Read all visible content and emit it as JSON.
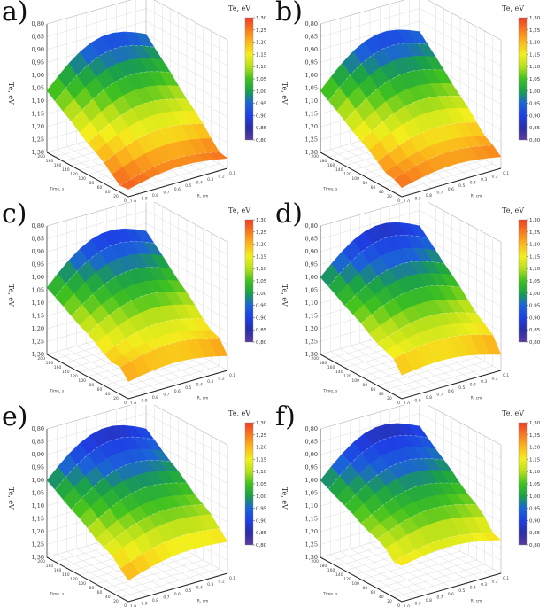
{
  "chart_data": [
    {
      "panel": "a)",
      "type": "surface3d",
      "title": "",
      "zlabel": "Te, eV",
      "xlabel": "Time, s",
      "ylabel": "R, cm",
      "colorbar_title": "Te, eV",
      "zlim": [
        0.8,
        1.3
      ],
      "z_ticks": [
        "0,80",
        "0,85",
        "0,90",
        "0,95",
        "1,00",
        "1,05",
        "1,10",
        "1,15",
        "1,20",
        "1,25",
        "1,30"
      ],
      "x_ticks": [
        "200",
        "180",
        "160",
        "140",
        "120",
        "100",
        "80",
        "60",
        "40",
        "20",
        "0"
      ],
      "y_ticks": [
        "1.0",
        "0.9",
        "0.8",
        "0.7",
        "0.6",
        "0.5",
        "0.4",
        "0.3",
        "0.2",
        "0.1"
      ],
      "colorbar_ticks": [
        "1,30",
        "1,25",
        "1,20",
        "1,15",
        "1,10",
        "1,05",
        "1,00",
        "0,95",
        "0,90",
        "0,85",
        "0,80"
      ],
      "corner_values": {
        "t200_r1.0": 1.06,
        "t0_r1.0": 1.29,
        "t0_r0.1": 1.28,
        "t200_r0.1": 0.95
      },
      "min": 0.91,
      "max": 1.3
    },
    {
      "panel": "b)",
      "type": "surface3d",
      "title": "",
      "zlabel": "Te, eV",
      "xlabel": "Time, s",
      "ylabel": "R, cm",
      "colorbar_title": "Te, eV",
      "zlim": [
        0.8,
        1.3
      ],
      "z_ticks": [
        "0,80",
        "0,85",
        "0,90",
        "0,95",
        "1,00",
        "1,05",
        "1,10",
        "1,15",
        "1,20",
        "1,25",
        "1,30"
      ],
      "x_ticks": [
        "200",
        "180",
        "160",
        "140",
        "120",
        "100",
        "80",
        "60",
        "40",
        "20",
        "0"
      ],
      "y_ticks": [
        "1.0",
        "0.9",
        "0.8",
        "0.7",
        "0.6",
        "0.5",
        "0.4",
        "0.3",
        "0.2",
        "0.1"
      ],
      "colorbar_ticks": [
        "1,30",
        "1,25",
        "1,20",
        "1,15",
        "1,10",
        "1,05",
        "1,00",
        "0,95",
        "0,90",
        "0,85",
        "0,80"
      ],
      "corner_values": {
        "t200_r1.0": 1.06,
        "t0_r1.0": 1.28,
        "t0_r0.1": 1.27,
        "t200_r0.1": 0.94
      },
      "min": 0.9,
      "max": 1.28
    },
    {
      "panel": "c)",
      "type": "surface3d",
      "title": "",
      "zlabel": "Te, eV",
      "xlabel": "Time, s",
      "ylabel": "R, cm",
      "colorbar_title": "Te, eV",
      "zlim": [
        0.8,
        1.3
      ],
      "z_ticks": [
        "0,80",
        "0,85",
        "0,90",
        "0,95",
        "1,00",
        "1,05",
        "1,10",
        "1,15",
        "1,20",
        "1,25",
        "1,30"
      ],
      "x_ticks": [
        "200",
        "180",
        "160",
        "140",
        "120",
        "100",
        "80",
        "60",
        "40",
        "20",
        "0"
      ],
      "y_ticks": [
        "1.0",
        "0.9",
        "0.8",
        "0.7",
        "0.6",
        "0.5",
        "0.4",
        "0.3",
        "0.2",
        "0.1"
      ],
      "colorbar_ticks": [
        "1,30",
        "1,25",
        "1,20",
        "1,15",
        "1,10",
        "1,05",
        "1,00",
        "0,95",
        "0,90",
        "0,85",
        "0,80"
      ],
      "corner_values": {
        "t200_r1.0": 1.04,
        "t0_r1.0": 1.23,
        "t0_r0.1": 1.24,
        "t200_r0.1": 0.93
      },
      "min": 0.89,
      "max": 1.24
    },
    {
      "panel": "d)",
      "type": "surface3d",
      "title": "",
      "zlabel": "Te, eV",
      "xlabel": "Time, s",
      "ylabel": "R, cm",
      "colorbar_title": "Te, eV",
      "zlim": [
        0.8,
        1.3
      ],
      "z_ticks": [
        "0,80",
        "0,85",
        "0,90",
        "0,95",
        "1,00",
        "1,05",
        "1,10",
        "1,15",
        "1,20",
        "1,25",
        "1,30"
      ],
      "x_ticks": [
        "200",
        "180",
        "160",
        "140",
        "120",
        "100",
        "80",
        "60",
        "40",
        "20",
        "0"
      ],
      "y_ticks": [
        "1.0",
        "0.9",
        "0.8",
        "0.7",
        "0.6",
        "0.5",
        "0.4",
        "0.3",
        "0.2",
        "0.1"
      ],
      "colorbar_ticks": [
        "1,30",
        "1,25",
        "1,20",
        "1,15",
        "1,10",
        "1,05",
        "1,00",
        "0,95",
        "0,90",
        "0,85",
        "0,80"
      ],
      "corner_values": {
        "t200_r1.0": 1.0,
        "t0_r1.0": 1.19,
        "t0_r0.1": 1.22,
        "t200_r0.1": 0.91
      },
      "min": 0.86,
      "max": 1.22
    },
    {
      "panel": "e)",
      "type": "surface3d",
      "title": "",
      "zlabel": "Te, eV",
      "xlabel": "Time, s",
      "ylabel": "R, cm",
      "colorbar_title": "Te, eV",
      "zlim": [
        0.8,
        1.3
      ],
      "z_ticks": [
        "0,80",
        "0,85",
        "0,90",
        "0,95",
        "1,00",
        "1,05",
        "1,10",
        "1,15",
        "1,20",
        "1,25",
        "1,30"
      ],
      "x_ticks": [
        "200",
        "180",
        "160",
        "140",
        "120",
        "100",
        "80",
        "60",
        "40",
        "20",
        "0"
      ],
      "y_ticks": [
        "1.0",
        "0.9",
        "0.8",
        "0.7",
        "0.6",
        "0.5",
        "0.4",
        "0.3",
        "0.2",
        "0.1"
      ],
      "colorbar_ticks": [
        "1,30",
        "1,25",
        "1,20",
        "1,15",
        "1,10",
        "1,05",
        "1,00",
        "0,95",
        "0,90",
        "0,85",
        "0,80"
      ],
      "corner_values": {
        "t200_r1.0": 1.0,
        "t0_r1.0": 1.2,
        "t0_r0.1": 1.16,
        "t200_r0.1": 0.91
      },
      "min": 0.86,
      "max": 1.22
    },
    {
      "panel": "f)",
      "type": "surface3d",
      "title": "",
      "zlabel": "Te, eV",
      "xlabel": "Time, s",
      "ylabel": "R, cm",
      "colorbar_title": "Te, eV",
      "zlim": [
        0.8,
        1.3
      ],
      "z_ticks": [
        "0,80",
        "0,85",
        "0,90",
        "0,95",
        "1,00",
        "1,05",
        "1,10",
        "1,15",
        "1,20",
        "1,25",
        "1,30"
      ],
      "x_ticks": [
        "200",
        "180",
        "160",
        "140",
        "120",
        "100",
        "80",
        "60",
        "40",
        "20",
        "0"
      ],
      "y_ticks": [
        "1.0",
        "0.9",
        "0.8",
        "0.7",
        "0.6",
        "0.5",
        "0.4",
        "0.3",
        "0.2",
        "0.1"
      ],
      "colorbar_ticks": [
        "1,30",
        "1,25",
        "1,20",
        "1,15",
        "1,10",
        "1,05",
        "1,00",
        "0,95",
        "0,90",
        "0,85",
        "0,80"
      ],
      "corner_values": {
        "t200_r1.0": 1.0,
        "t0_r1.0": 1.16,
        "t0_r0.1": 1.17,
        "t200_r0.1": 0.9
      },
      "min": 0.86,
      "max": 1.18
    }
  ],
  "colorscale": [
    "#5b3c9e",
    "#2a2ea8",
    "#1e3fe6",
    "#1b63d8",
    "#1aa04a",
    "#3fc11f",
    "#b6e01a",
    "#f3ef1c",
    "#fbb91a",
    "#f77b1e",
    "#f23b25"
  ]
}
